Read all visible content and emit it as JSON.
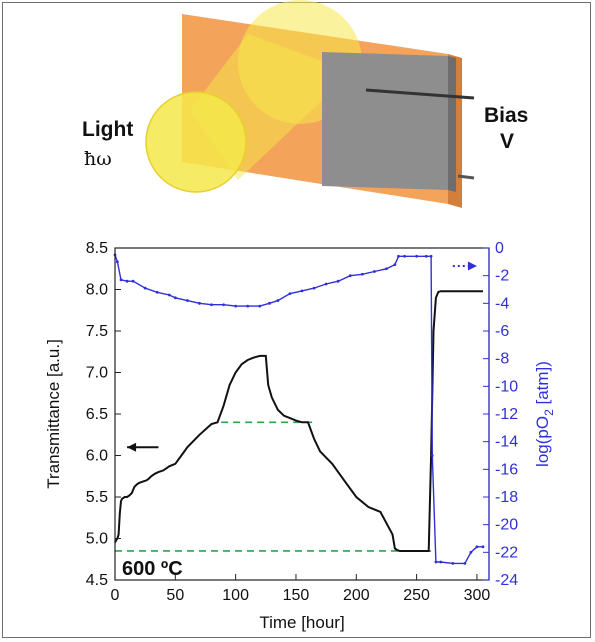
{
  "figure": {
    "schematic": {
      "light_label": "Light",
      "light_symbol": "ħω",
      "bias_label_line1": "Bias",
      "bias_label_line2": "V",
      "colors": {
        "slab": "#f4a35a",
        "electrode": "#8e8e8e",
        "light": "#f5e84a"
      }
    }
  },
  "chart_data": {
    "type": "line",
    "xlabel": "Time [hour]",
    "ylabel": "Transmittance [a.u.]",
    "y2label": "log(pO2 [atm])",
    "y2label_main": "log(pO",
    "y2label_sub": "2",
    "y2label_end": " [atm])",
    "annotation": "600 ºC",
    "xlim": [
      0,
      310
    ],
    "ylim": [
      4.5,
      8.5
    ],
    "y2lim": [
      -24,
      0
    ],
    "x_ticks": [
      "0",
      "50",
      "100",
      "150",
      "200",
      "250",
      "300"
    ],
    "y_ticks": [
      "4.5",
      "5.0",
      "5.5",
      "6.0",
      "6.5",
      "7.0",
      "7.5",
      "8.0",
      "8.5"
    ],
    "y2_ticks": [
      "0",
      "-2",
      "-4",
      "-6",
      "-8",
      "-10",
      "-12",
      "-14",
      "-16",
      "-18",
      "-20",
      "-22",
      "-24"
    ],
    "colors": {
      "transmittance": "#111111",
      "po2": "#3030d8",
      "reference": "#2ca44a"
    },
    "series": [
      {
        "axis": "left",
        "x": [
          0,
          1,
          2,
          3,
          4,
          5,
          6,
          8,
          10,
          12,
          14,
          16,
          18,
          20,
          22,
          24,
          26,
          28,
          30,
          33,
          36,
          40,
          45,
          50,
          55,
          60,
          70,
          80,
          85,
          90,
          95,
          100,
          105,
          110,
          115,
          120,
          125,
          127,
          130,
          135,
          140,
          145,
          150,
          155,
          160,
          165,
          170,
          180,
          190,
          200,
          210,
          220,
          230,
          232,
          234,
          236,
          240,
          250,
          260,
          262,
          264,
          266,
          268,
          270,
          275,
          280,
          290,
          300,
          305
        ],
        "y": [
          4.95,
          4.98,
          5.0,
          5.05,
          5.3,
          5.45,
          5.48,
          5.5,
          5.5,
          5.52,
          5.55,
          5.62,
          5.65,
          5.67,
          5.68,
          5.69,
          5.7,
          5.72,
          5.75,
          5.78,
          5.8,
          5.82,
          5.87,
          5.9,
          6.0,
          6.1,
          6.25,
          6.38,
          6.4,
          6.6,
          6.85,
          7.0,
          7.1,
          7.15,
          7.18,
          7.2,
          7.2,
          6.85,
          6.7,
          6.55,
          6.48,
          6.45,
          6.42,
          6.4,
          6.4,
          6.2,
          6.05,
          5.9,
          5.7,
          5.5,
          5.38,
          5.32,
          5.05,
          4.88,
          4.86,
          4.85,
          4.85,
          4.85,
          4.85,
          6.0,
          7.5,
          7.9,
          7.97,
          7.98,
          7.98,
          7.98,
          7.98,
          7.98,
          7.98
        ]
      },
      {
        "axis": "right",
        "x": [
          0,
          2,
          5,
          10,
          15,
          25,
          35,
          45,
          50,
          60,
          70,
          80,
          90,
          100,
          110,
          120,
          128,
          135,
          145,
          155,
          165,
          175,
          185,
          195,
          205,
          215,
          225,
          232,
          235,
          240,
          250,
          258,
          262,
          263,
          266,
          270,
          280,
          290,
          295,
          300,
          305
        ],
        "y": [
          -0.5,
          -1.0,
          -2.3,
          -2.4,
          -2.4,
          -2.9,
          -3.2,
          -3.4,
          -3.6,
          -3.8,
          -4.0,
          -4.1,
          -4.1,
          -4.2,
          -4.2,
          -4.2,
          -4.0,
          -3.8,
          -3.3,
          -3.1,
          -2.9,
          -2.6,
          -2.4,
          -2.0,
          -1.9,
          -1.7,
          -1.5,
          -1.2,
          -0.6,
          -0.6,
          -0.6,
          -0.6,
          -0.6,
          -15.0,
          -22.7,
          -22.7,
          -22.8,
          -22.8,
          -22.0,
          -21.6,
          -21.6
        ]
      }
    ],
    "reference_lines": [
      {
        "y": 6.4,
        "x_from": 88,
        "x_to": 165
      },
      {
        "y": 4.85,
        "x_from": 0,
        "x_to": 262
      }
    ],
    "arrows": [
      {
        "direction": "left",
        "x_from": 36,
        "x_to": 10,
        "y": 6.1
      },
      {
        "direction": "right",
        "axis": "right",
        "x_from": 280,
        "x_to": 300,
        "y": -1.3
      }
    ]
  }
}
